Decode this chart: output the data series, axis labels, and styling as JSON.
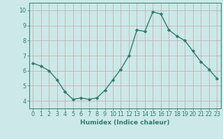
{
  "x": [
    0,
    1,
    2,
    3,
    4,
    5,
    6,
    7,
    8,
    9,
    10,
    11,
    12,
    13,
    14,
    15,
    16,
    17,
    18,
    19,
    20,
    21,
    22,
    23
  ],
  "y": [
    6.5,
    6.3,
    6.0,
    5.4,
    4.6,
    4.1,
    4.2,
    4.1,
    4.2,
    4.7,
    5.4,
    6.1,
    7.0,
    8.7,
    8.6,
    9.9,
    9.75,
    8.7,
    8.3,
    8.0,
    7.3,
    6.6,
    6.1,
    5.5
  ],
  "line_color": "#2e7d6e",
  "marker": "D",
  "markersize": 2.2,
  "linewidth": 1.0,
  "xlabel": "Humidex (Indice chaleur)",
  "xlim": [
    -0.5,
    23.5
  ],
  "ylim": [
    3.5,
    10.5
  ],
  "yticks": [
    4,
    5,
    6,
    7,
    8,
    9,
    10
  ],
  "xticks": [
    0,
    1,
    2,
    3,
    4,
    5,
    6,
    7,
    8,
    9,
    10,
    11,
    12,
    13,
    14,
    15,
    16,
    17,
    18,
    19,
    20,
    21,
    22,
    23
  ],
  "bg_color": "#cce8e8",
  "grid_color": "#c0a8a8",
  "xlabel_fontsize": 6.5,
  "tick_fontsize": 5.8
}
